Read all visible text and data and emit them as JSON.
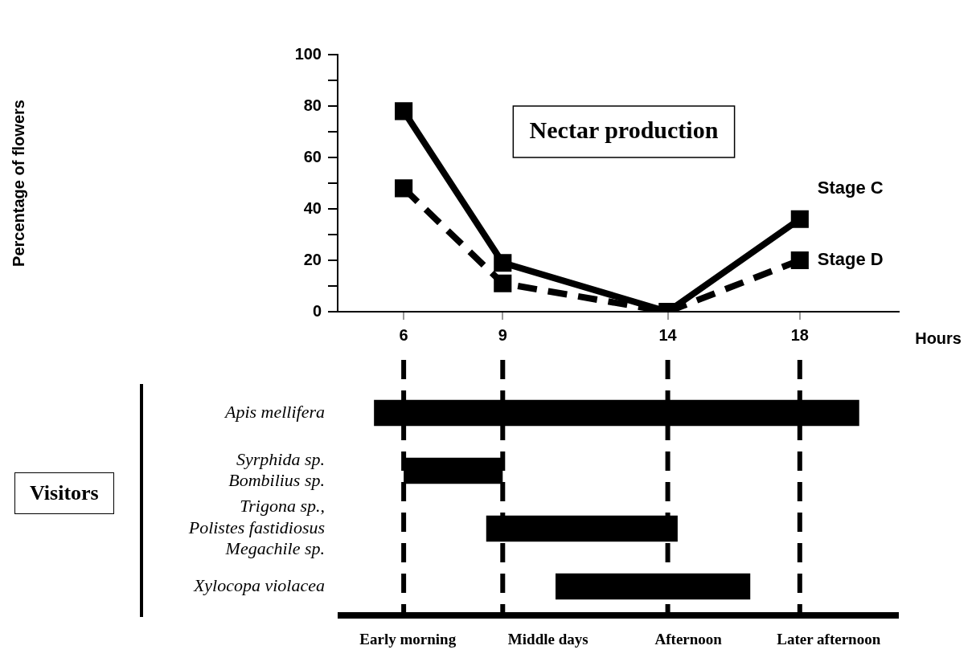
{
  "chart_data": [
    {
      "type": "line",
      "title": "Nectar production",
      "xlabel": "Hours",
      "ylabel": "Percentage of flowers",
      "x": [
        6,
        9,
        14,
        18
      ],
      "xlim": [
        4,
        21
      ],
      "xticks": [
        6,
        9,
        14,
        18
      ],
      "ylim": [
        0,
        100
      ],
      "yticks": [
        0,
        {
          "value": 10,
          "label": null
        },
        20,
        {
          "value": 30,
          "label": null
        },
        40,
        {
          "value": 50,
          "label": null
        },
        60,
        {
          "value": 70,
          "label": null
        },
        80,
        {
          "value": 90,
          "label": null
        },
        100
      ],
      "marker": "square",
      "series": [
        {
          "name": "Stage C",
          "color": "#000000",
          "line_style": "solid",
          "values": [
            78,
            19,
            0,
            36
          ]
        },
        {
          "name": "Stage D",
          "color": "#000000",
          "line_style": "dashed",
          "values": [
            48,
            11,
            0,
            20
          ]
        }
      ]
    },
    {
      "type": "bar",
      "orientation": "horizontal",
      "ylabel": "Visitors",
      "tick_labels": "y",
      "categories": [
        "Apis mellifera",
        "Syrphida sp.\nBombilius sp.",
        "Trigona sp.,\nPolistes fastidiosus\nMegachile sp.",
        "Xylocopa violacea"
      ],
      "base": [
        5.1,
        6,
        8.5,
        10.6
      ],
      "values": [
        14.7,
        3,
        5.8,
        5.9
      ],
      "color": "#000000",
      "xlim": [
        4,
        21
      ],
      "ref_lines": [
        {
          "axis": "x",
          "value": 6,
          "line_style": "dashed"
        },
        {
          "axis": "x",
          "value": 9,
          "line_style": "dashed"
        },
        {
          "axis": "x",
          "value": 14,
          "line_style": "dashed"
        },
        {
          "axis": "x",
          "value": 18,
          "line_style": "dashed"
        }
      ],
      "annotations": [
        "Early morning",
        "Middle days",
        "Afternoon",
        "Later afternoon"
      ]
    }
  ]
}
